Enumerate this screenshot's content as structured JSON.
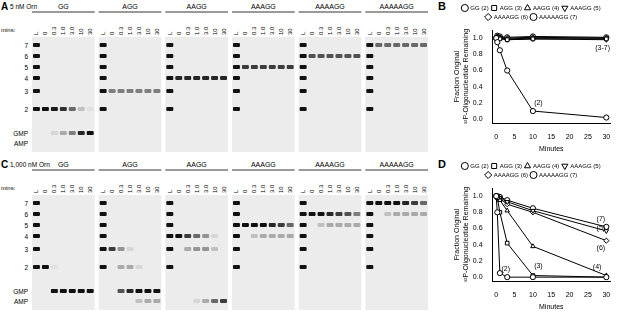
{
  "gels": [
    {
      "panel_label": "A",
      "condition": "5 nM Orn",
      "time_label": "mins:",
      "ladder_label": "L",
      "times": [
        "0",
        "0.3",
        "1.0",
        "3.0",
        "10",
        "30"
      ],
      "size_labels": [
        "7",
        "6",
        "5",
        "4",
        "3",
        "2",
        "GMP",
        "AMP"
      ],
      "ladder_bands": [
        "7",
        "6",
        "5",
        "4",
        "3",
        "2"
      ],
      "groups": [
        {
          "name": "GG",
          "bands": [
            {
              "species": "2",
              "intensity": [
                1.0,
                0.95,
                0.85,
                0.6,
                0.2,
                0.05
              ]
            },
            {
              "species": "GMP",
              "intensity": [
                0.0,
                0.1,
                0.3,
                0.5,
                0.9,
                1.0
              ]
            }
          ]
        },
        {
          "name": "AGG",
          "bands": [
            {
              "species": "3",
              "intensity": [
                0.5,
                0.5,
                0.5,
                0.5,
                0.5,
                0.5
              ]
            }
          ]
        },
        {
          "name": "AAGG",
          "bands": [
            {
              "species": "4",
              "intensity": [
                0.9,
                0.9,
                0.9,
                0.9,
                0.9,
                0.9
              ]
            }
          ]
        },
        {
          "name": "AAAGG",
          "bands": [
            {
              "species": "5",
              "intensity": [
                0.8,
                0.8,
                0.8,
                0.8,
                0.8,
                0.8
              ]
            }
          ]
        },
        {
          "name": "AAAAGG",
          "bands": [
            {
              "species": "6",
              "intensity": [
                0.7,
                0.7,
                0.7,
                0.7,
                0.7,
                0.7
              ]
            }
          ]
        },
        {
          "name": "AAAAAGG",
          "bands": [
            {
              "species": "7",
              "intensity": [
                0.6,
                0.6,
                0.6,
                0.6,
                0.6,
                0.6
              ]
            }
          ]
        }
      ]
    },
    {
      "panel_label": "C",
      "condition": "1,000 nM Orn",
      "time_label": "mins:",
      "ladder_label": "L",
      "times": [
        "0",
        "0.3",
        "1.0",
        "3.0",
        "10",
        "30"
      ],
      "size_labels": [
        "7",
        "6",
        "5",
        "4",
        "3",
        "2",
        "GMP",
        "AMP"
      ],
      "ladder_bands": [
        "7",
        "6",
        "5",
        "4",
        "3",
        "2"
      ],
      "groups": [
        {
          "name": "GG",
          "bands": [
            {
              "species": "2",
              "intensity": [
                1.0,
                0.05,
                0.0,
                0.0,
                0.0,
                0.0
              ]
            },
            {
              "species": "GMP",
              "intensity": [
                0.0,
                1.0,
                1.0,
                1.0,
                1.0,
                1.0
              ]
            }
          ]
        },
        {
          "name": "AGG",
          "bands": [
            {
              "species": "3",
              "intensity": [
                0.8,
                0.4,
                0.1,
                0.0,
                0.0,
                0.0
              ]
            },
            {
              "species": "2",
              "intensity": [
                0.0,
                0.3,
                0.3,
                0.1,
                0.0,
                0.0
              ]
            },
            {
              "species": "GMP",
              "intensity": [
                0.0,
                0.7,
                0.9,
                1.0,
                1.0,
                1.0
              ]
            },
            {
              "species": "AMP",
              "intensity": [
                0.0,
                0.0,
                0.0,
                0.2,
                0.3,
                0.3
              ]
            }
          ]
        },
        {
          "name": "AAGG",
          "bands": [
            {
              "species": "4",
              "intensity": [
                1.0,
                0.8,
                0.6,
                0.4,
                0.1,
                0.0
              ]
            },
            {
              "species": "3",
              "intensity": [
                0.0,
                0.3,
                0.4,
                0.4,
                0.2,
                0.0
              ]
            },
            {
              "species": "AMP",
              "intensity": [
                0.0,
                0.0,
                0.1,
                0.3,
                0.6,
                0.8
              ]
            }
          ]
        },
        {
          "name": "AAAGG",
          "bands": [
            {
              "species": "5",
              "intensity": [
                1.0,
                1.0,
                1.0,
                0.9,
                0.8,
                0.6
              ]
            },
            {
              "species": "4",
              "intensity": [
                0.0,
                0.2,
                0.3,
                0.3,
                0.3,
                0.3
              ]
            }
          ]
        },
        {
          "name": "AAAAGG",
          "bands": [
            {
              "species": "6",
              "intensity": [
                1.0,
                1.0,
                0.9,
                0.8,
                0.7,
                0.5
              ]
            },
            {
              "species": "5",
              "intensity": [
                0.0,
                0.2,
                0.3,
                0.3,
                0.3,
                0.3
              ]
            }
          ]
        },
        {
          "name": "AAAAAGG",
          "bands": [
            {
              "species": "7",
              "intensity": [
                1.0,
                1.0,
                1.0,
                0.9,
                0.8,
                0.6
              ]
            },
            {
              "species": "6",
              "intensity": [
                0.0,
                0.2,
                0.3,
                0.3,
                0.3,
                0.3
              ]
            }
          ]
        }
      ]
    }
  ],
  "chart_data": [
    {
      "type": "line",
      "panel_label": "B",
      "x_label": "Minutes",
      "y_label": [
        "Fraction Original",
        "³²P-Oligonucleotide Remaining"
      ],
      "xlim": [
        -1,
        31
      ],
      "xticks": [
        0,
        5,
        10,
        15,
        20,
        25,
        30
      ],
      "ylim": [
        -0.05,
        1.1
      ],
      "yticks": [
        {
          "value": 0,
          "label": "0.0"
        },
        {
          "value": 0.2,
          "label": "0.2"
        },
        {
          "value": 0.4,
          "label": "0.4"
        },
        {
          "value": 0.6,
          "label": "0.6"
        },
        {
          "value": 0.8,
          "label": "0.8"
        },
        {
          "value": 1.0,
          "label": "1.0"
        }
      ],
      "grid": false,
      "legend": "top",
      "x": [
        0,
        0.3,
        1,
        3,
        10,
        30
      ],
      "series": [
        {
          "name": "GG (2)",
          "color": "#000000",
          "marker": "circle",
          "values": [
            1.0,
            0.95,
            0.85,
            0.6,
            0.1,
            0.02
          ]
        },
        {
          "name": "AGG (3)",
          "color": "#000000",
          "marker": "square",
          "values": [
            1.0,
            1.01,
            0.99,
            0.98,
            0.99,
            0.99
          ]
        },
        {
          "name": "AAGG (4)",
          "color": "#000000",
          "marker": "triangle",
          "values": [
            1.0,
            1.02,
            1.0,
            0.99,
            1.0,
            1.0
          ]
        },
        {
          "name": "AAAGG (5)",
          "color": "#000000",
          "marker": "triangle_down",
          "values": [
            1.0,
            1.0,
            1.01,
            0.98,
            0.99,
            0.98
          ]
        },
        {
          "name": "AAAAGG (6)",
          "color": "#000000",
          "marker": "diamond",
          "values": [
            1.0,
            1.02,
            1.01,
            1.0,
            1.01,
            1.0
          ]
        },
        {
          "name": "AAAAAGG (7)",
          "color": "#000000",
          "marker": "circle",
          "values": [
            1.0,
            1.03,
            1.02,
            1.01,
            1.02,
            1.01
          ]
        }
      ],
      "annotations": [
        {
          "x": 11.5,
          "y": 0.2,
          "text": "(2)"
        },
        {
          "x": 29,
          "y": 0.88,
          "text": "(3-7)"
        }
      ]
    },
    {
      "type": "line",
      "panel_label": "D",
      "x_label": "Minutes",
      "y_label": [
        "Fraction Original",
        "³²P-Oligonucleotide Remaining"
      ],
      "xlim": [
        -1,
        31
      ],
      "xticks": [
        0,
        5,
        10,
        15,
        20,
        25,
        30
      ],
      "ylim": [
        -0.05,
        1.1
      ],
      "yticks": [
        {
          "value": 0,
          "label": "0.0"
        },
        {
          "value": 0.2,
          "label": "0.2"
        },
        {
          "value": 0.4,
          "label": "0.4"
        },
        {
          "value": 0.6,
          "label": "0.6"
        },
        {
          "value": 0.8,
          "label": "0.8"
        },
        {
          "value": 1.0,
          "label": "1.0"
        }
      ],
      "grid": false,
      "legend": "top",
      "x": [
        0,
        0.3,
        1,
        3,
        10,
        30
      ],
      "series": [
        {
          "name": "GG (2)",
          "color": "#000000",
          "marker": "circle",
          "values": [
            1.0,
            0.8,
            0.05,
            0.0,
            0.0,
            0.0
          ]
        },
        {
          "name": "AGG (3)",
          "color": "#000000",
          "marker": "square",
          "values": [
            1.0,
            0.98,
            0.8,
            0.42,
            0.02,
            0.0
          ]
        },
        {
          "name": "AAGG (4)",
          "color": "#000000",
          "marker": "triangle",
          "values": [
            1.0,
            1.0,
            0.95,
            0.82,
            0.38,
            0.02
          ]
        },
        {
          "name": "AAAGG (5)",
          "color": "#000000",
          "marker": "triangle_down",
          "values": [
            1.0,
            1.0,
            0.98,
            0.93,
            0.82,
            0.57
          ]
        },
        {
          "name": "AAAAGG (6)",
          "color": "#000000",
          "marker": "diamond",
          "values": [
            1.0,
            1.0,
            0.97,
            0.9,
            0.8,
            0.45
          ]
        },
        {
          "name": "AAAAAGG (7)",
          "color": "#000000",
          "marker": "circle",
          "values": [
            1.0,
            1.0,
            0.99,
            0.95,
            0.85,
            0.62
          ]
        }
      ],
      "annotations": [
        {
          "x": 2.6,
          "y": 0.1,
          "text": "(2)"
        },
        {
          "x": 11.5,
          "y": 0.14,
          "text": "(3)"
        },
        {
          "x": 27.5,
          "y": 0.12,
          "text": "(4)"
        },
        {
          "x": 28.5,
          "y": 0.72,
          "text": "(7)"
        },
        {
          "x": 28.5,
          "y": 0.6,
          "text": "(5)"
        },
        {
          "x": 28.5,
          "y": 0.36,
          "text": "(6)"
        }
      ]
    }
  ]
}
